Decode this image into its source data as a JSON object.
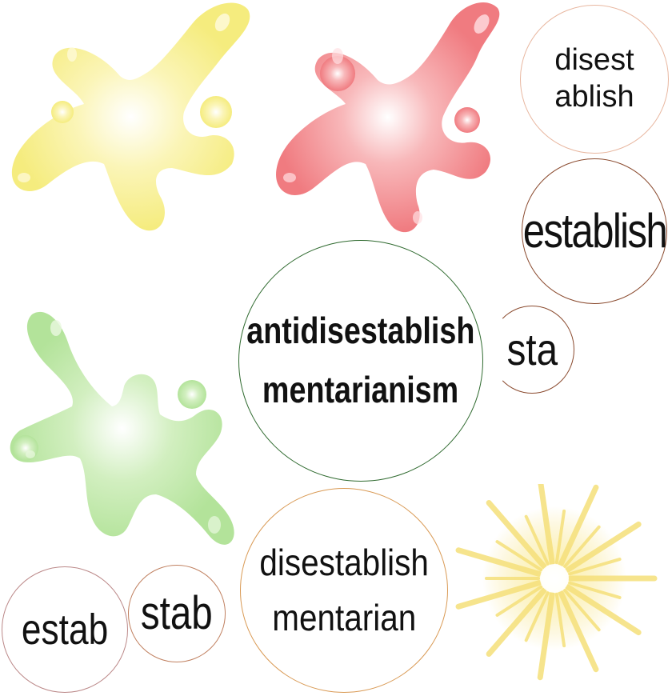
{
  "colors": {
    "yellow_splat": "#f7ef86",
    "red_splat": "#f2868a",
    "green_splat": "#b8e6a2",
    "sunburst": "#f8e79a"
  },
  "bubbles": {
    "disest_ablish": [
      "disest",
      "ablish"
    ],
    "establish": "establish",
    "antidisestablishmentarianism": [
      "antidisestablish",
      "mentarianism"
    ],
    "sta": "sta",
    "disestablishmentarian": [
      "disestablish",
      "mentarian"
    ],
    "estab": "estab",
    "stab": "stab"
  }
}
